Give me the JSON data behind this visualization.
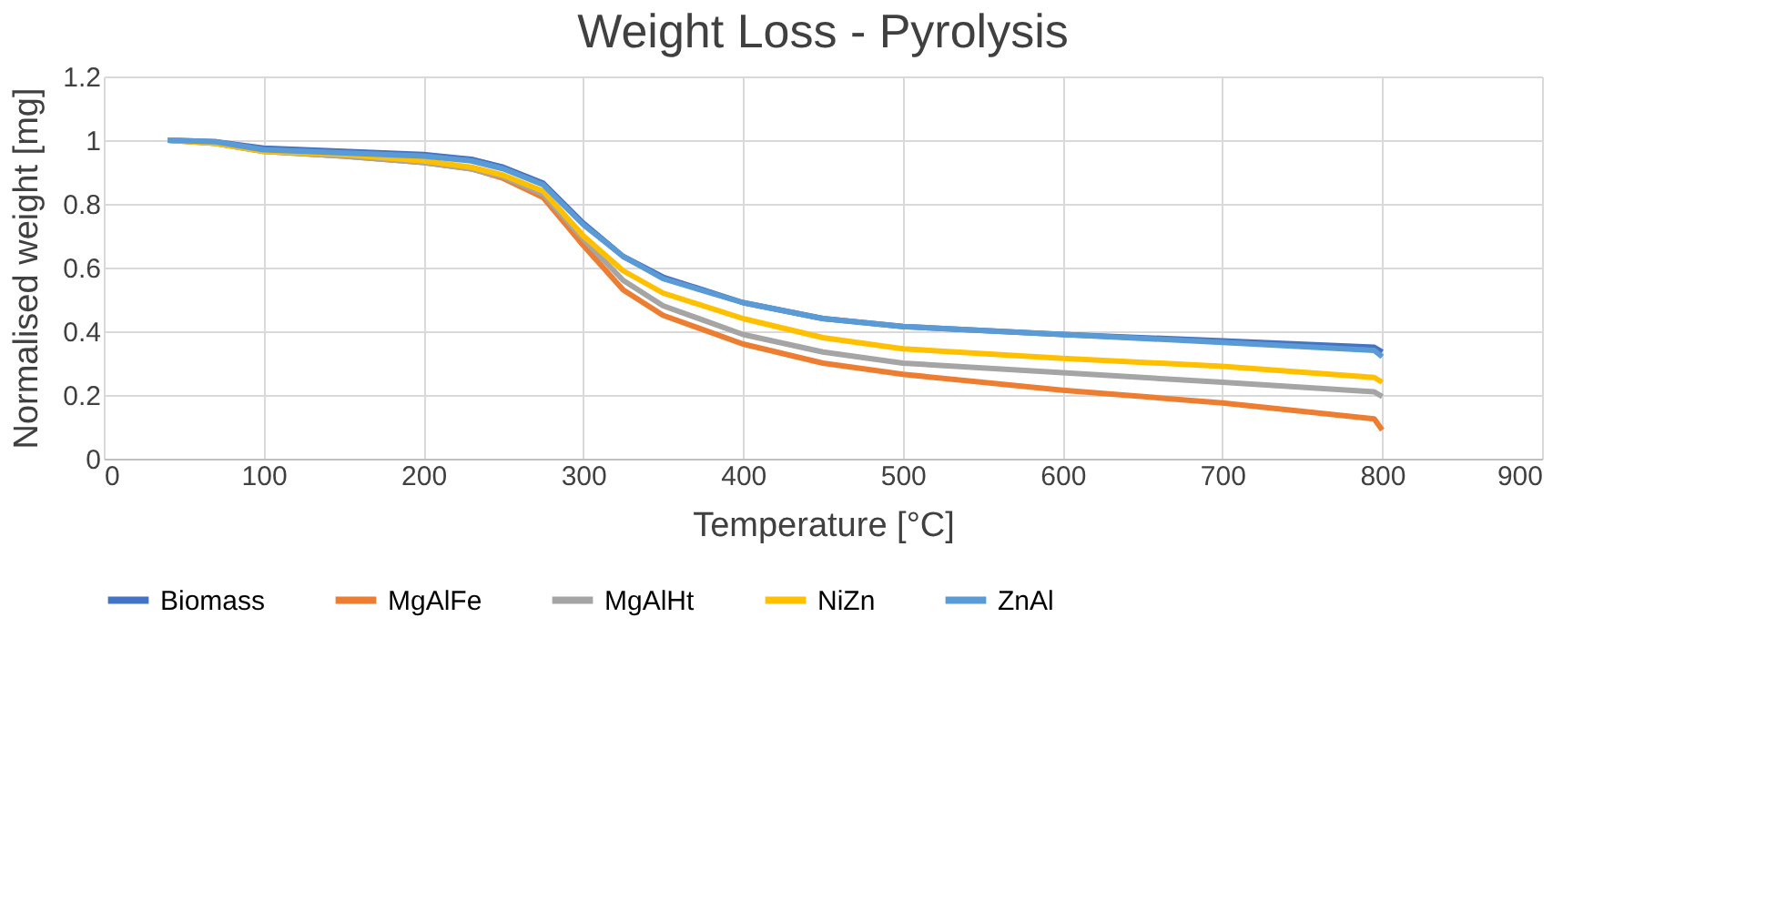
{
  "chart_data": {
    "type": "line",
    "title": "Weight Loss - Pyrolysis",
    "xlabel": "Temperature [°C]",
    "ylabel": "Normalised weight [mg]",
    "x": [
      40,
      70,
      100,
      150,
      200,
      230,
      250,
      275,
      300,
      325,
      350,
      400,
      450,
      500,
      600,
      700,
      795,
      800
    ],
    "series": [
      {
        "name": "Biomass",
        "color": "#4472c4",
        "values": [
          1.0,
          0.995,
          0.975,
          0.965,
          0.955,
          0.94,
          0.915,
          0.865,
          0.74,
          0.635,
          0.57,
          0.49,
          0.44,
          0.415,
          0.39,
          0.37,
          0.35,
          0.335
        ]
      },
      {
        "name": "MgAlFe",
        "color": "#ed7d31",
        "values": [
          1.0,
          0.99,
          0.965,
          0.95,
          0.93,
          0.91,
          0.88,
          0.82,
          0.67,
          0.53,
          0.45,
          0.36,
          0.3,
          0.265,
          0.215,
          0.175,
          0.125,
          0.09
        ]
      },
      {
        "name": "MgAlHt",
        "color": "#a5a5a5",
        "values": [
          1.0,
          0.99,
          0.965,
          0.95,
          0.93,
          0.91,
          0.885,
          0.83,
          0.69,
          0.56,
          0.48,
          0.39,
          0.335,
          0.3,
          0.27,
          0.24,
          0.21,
          0.195
        ]
      },
      {
        "name": "NiZn",
        "color": "#ffc000",
        "values": [
          1.0,
          0.99,
          0.965,
          0.955,
          0.935,
          0.915,
          0.89,
          0.84,
          0.7,
          0.59,
          0.52,
          0.44,
          0.38,
          0.345,
          0.315,
          0.29,
          0.255,
          0.24
        ]
      },
      {
        "name": "ZnAl",
        "color": "#5b9bd5",
        "values": [
          1.0,
          0.995,
          0.97,
          0.96,
          0.95,
          0.935,
          0.91,
          0.86,
          0.735,
          0.635,
          0.565,
          0.49,
          0.44,
          0.415,
          0.39,
          0.365,
          0.34,
          0.32
        ]
      }
    ],
    "xlim": [
      0,
      900
    ],
    "xticks": [
      0,
      100,
      200,
      300,
      400,
      500,
      600,
      700,
      800,
      900
    ],
    "ylim": [
      0,
      1.2
    ],
    "yticks": [
      0,
      0.2,
      0.4,
      0.6,
      0.8,
      1,
      1.2
    ],
    "grid": true,
    "legend": "bottom",
    "marker": "none",
    "line_style": "solid"
  }
}
